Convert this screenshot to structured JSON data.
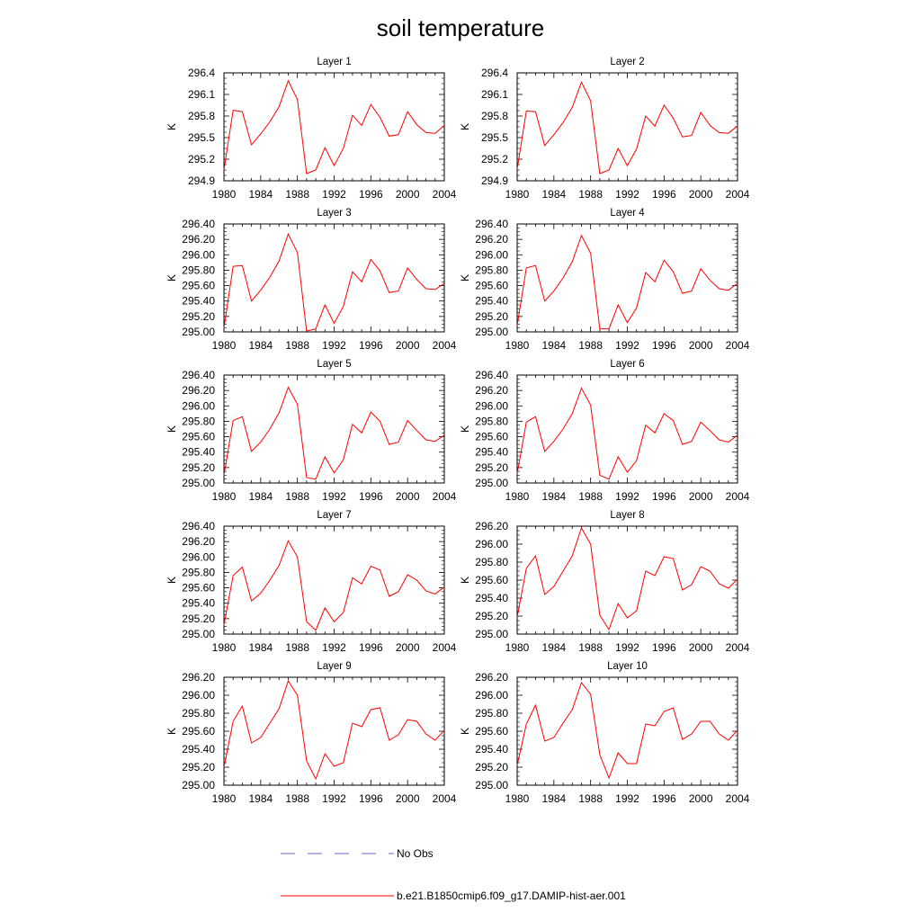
{
  "figure": {
    "title": "soil temperature",
    "legend": [
      {
        "label": "No Obs",
        "color": "#6666cc",
        "style": "dashed"
      },
      {
        "label": "b.e21.B1850cmip6.f09_g17.DAMIP-hist-aer.001",
        "color": "#ff0000",
        "style": "solid"
      }
    ]
  },
  "chart_data": [
    {
      "type": "line",
      "title": "Layer 1",
      "ylabel": "K",
      "xlim": [
        1980,
        2004
      ],
      "ylim": [
        294.9,
        296.4
      ],
      "xticks": [
        "1980",
        "1984",
        "1988",
        "1992",
        "1996",
        "2000",
        "2004"
      ],
      "yticks": [
        "294.9",
        "295.2",
        "295.5",
        "295.8",
        "296.1",
        "296.4"
      ],
      "x": [
        1980,
        1981,
        1982,
        1983,
        1984,
        1985,
        1986,
        1987,
        1988,
        1989,
        1990,
        1991,
        1992,
        1993,
        1994,
        1995,
        1996,
        1997,
        1998,
        1999,
        2000,
        2001,
        2002,
        2003,
        2004
      ],
      "series": [
        {
          "color": "#ff0000",
          "values": [
            295.05,
            295.88,
            295.86,
            295.4,
            295.55,
            295.72,
            295.93,
            296.29,
            296.03,
            295.0,
            295.05,
            295.36,
            295.11,
            295.35,
            295.81,
            295.67,
            295.96,
            295.78,
            295.52,
            295.54,
            295.86,
            295.68,
            295.57,
            295.56,
            295.67
          ]
        }
      ]
    },
    {
      "type": "line",
      "title": "Layer 2",
      "ylabel": "K",
      "xlim": [
        1980,
        2004
      ],
      "ylim": [
        294.9,
        296.4
      ],
      "xticks": [
        "1980",
        "1984",
        "1988",
        "1992",
        "1996",
        "2000",
        "2004"
      ],
      "yticks": [
        "294.9",
        "295.2",
        "295.5",
        "295.8",
        "296.1",
        "296.4"
      ],
      "x": [
        1980,
        1981,
        1982,
        1983,
        1984,
        1985,
        1986,
        1987,
        1988,
        1989,
        1990,
        1991,
        1992,
        1993,
        1994,
        1995,
        1996,
        1997,
        1998,
        1999,
        2000,
        2001,
        2002,
        2003,
        2004
      ],
      "series": [
        {
          "color": "#ff0000",
          "values": [
            295.06,
            295.87,
            295.86,
            295.39,
            295.54,
            295.71,
            295.92,
            296.27,
            296.01,
            295.0,
            295.05,
            295.35,
            295.11,
            295.34,
            295.8,
            295.66,
            295.95,
            295.77,
            295.51,
            295.53,
            295.85,
            295.67,
            295.57,
            295.56,
            295.66
          ]
        }
      ]
    },
    {
      "type": "line",
      "title": "Layer 3",
      "ylabel": "K",
      "xlim": [
        1980,
        2004
      ],
      "ylim": [
        295.0,
        296.4
      ],
      "xticks": [
        "1980",
        "1984",
        "1988",
        "1992",
        "1996",
        "2000",
        "2004"
      ],
      "yticks": [
        "295.00",
        "295.20",
        "295.40",
        "295.60",
        "295.80",
        "296.00",
        "296.20",
        "296.40"
      ],
      "x": [
        1980,
        1981,
        1982,
        1983,
        1984,
        1985,
        1986,
        1987,
        1988,
        1989,
        1990,
        1991,
        1992,
        1993,
        1994,
        1995,
        1996,
        1997,
        1998,
        1999,
        2000,
        2001,
        2002,
        2003,
        2004
      ],
      "series": [
        {
          "color": "#ff0000",
          "values": [
            295.05,
            295.85,
            295.86,
            295.4,
            295.54,
            295.71,
            295.92,
            296.27,
            296.03,
            295.01,
            295.04,
            295.35,
            295.11,
            295.33,
            295.78,
            295.65,
            295.94,
            295.79,
            295.51,
            295.53,
            295.83,
            295.68,
            295.56,
            295.55,
            295.63
          ]
        }
      ]
    },
    {
      "type": "line",
      "title": "Layer 4",
      "ylabel": "K",
      "xlim": [
        1980,
        2004
      ],
      "ylim": [
        295.0,
        296.4
      ],
      "xticks": [
        "1980",
        "1984",
        "1988",
        "1992",
        "1996",
        "2000",
        "2004"
      ],
      "yticks": [
        "295.00",
        "295.20",
        "295.40",
        "295.60",
        "295.80",
        "296.00",
        "296.20",
        "296.40"
      ],
      "x": [
        1980,
        1981,
        1982,
        1983,
        1984,
        1985,
        1986,
        1987,
        1988,
        1989,
        1990,
        1991,
        1992,
        1993,
        1994,
        1995,
        1996,
        1997,
        1998,
        1999,
        2000,
        2001,
        2002,
        2003,
        2004
      ],
      "series": [
        {
          "color": "#ff0000",
          "values": [
            295.08,
            295.83,
            295.86,
            295.4,
            295.53,
            295.7,
            295.91,
            296.25,
            296.02,
            295.04,
            295.04,
            295.35,
            295.12,
            295.31,
            295.77,
            295.65,
            295.93,
            295.78,
            295.5,
            295.53,
            295.82,
            295.67,
            295.56,
            295.54,
            295.63
          ]
        }
      ]
    },
    {
      "type": "line",
      "title": "Layer 5",
      "ylabel": "K",
      "xlim": [
        1980,
        2004
      ],
      "ylim": [
        295.0,
        296.4
      ],
      "xticks": [
        "1980",
        "1984",
        "1988",
        "1992",
        "1996",
        "2000",
        "2004"
      ],
      "yticks": [
        "295.00",
        "295.20",
        "295.40",
        "295.60",
        "295.80",
        "296.00",
        "296.20",
        "296.40"
      ],
      "x": [
        1980,
        1981,
        1982,
        1983,
        1984,
        1985,
        1986,
        1987,
        1988,
        1989,
        1990,
        1991,
        1992,
        1993,
        1994,
        1995,
        1996,
        1997,
        1998,
        1999,
        2000,
        2001,
        2002,
        2003,
        2004
      ],
      "series": [
        {
          "color": "#ff0000",
          "values": [
            295.1,
            295.81,
            295.86,
            295.41,
            295.53,
            295.7,
            295.91,
            296.24,
            296.02,
            295.07,
            295.05,
            295.34,
            295.13,
            295.3,
            295.76,
            295.65,
            295.92,
            295.8,
            295.5,
            295.53,
            295.81,
            295.68,
            295.56,
            295.54,
            295.62
          ]
        }
      ]
    },
    {
      "type": "line",
      "title": "Layer 6",
      "ylabel": "K",
      "xlim": [
        1980,
        2004
      ],
      "ylim": [
        295.0,
        296.4
      ],
      "xticks": [
        "1980",
        "1984",
        "1988",
        "1992",
        "1996",
        "2000",
        "2004"
      ],
      "yticks": [
        "295.00",
        "295.20",
        "295.40",
        "295.60",
        "295.80",
        "296.00",
        "296.20",
        "296.40"
      ],
      "x": [
        1980,
        1981,
        1982,
        1983,
        1984,
        1985,
        1986,
        1987,
        1988,
        1989,
        1990,
        1991,
        1992,
        1993,
        1994,
        1995,
        1996,
        1997,
        1998,
        1999,
        2000,
        2001,
        2002,
        2003,
        2004
      ],
      "series": [
        {
          "color": "#ff0000",
          "values": [
            295.12,
            295.79,
            295.86,
            295.41,
            295.54,
            295.7,
            295.9,
            296.23,
            296.01,
            295.1,
            295.05,
            295.34,
            295.14,
            295.29,
            295.75,
            295.65,
            295.9,
            295.81,
            295.5,
            295.54,
            295.79,
            295.68,
            295.56,
            295.53,
            295.62
          ]
        }
      ]
    },
    {
      "type": "line",
      "title": "Layer 7",
      "ylabel": "K",
      "xlim": [
        1980,
        2004
      ],
      "ylim": [
        295.0,
        296.4
      ],
      "xticks": [
        "1980",
        "1984",
        "1988",
        "1992",
        "1996",
        "2000",
        "2004"
      ],
      "yticks": [
        "295.00",
        "295.20",
        "295.40",
        "295.60",
        "295.80",
        "296.00",
        "296.20",
        "296.40"
      ],
      "x": [
        1980,
        1981,
        1982,
        1983,
        1984,
        1985,
        1986,
        1987,
        1988,
        1989,
        1990,
        1991,
        1992,
        1993,
        1994,
        1995,
        1996,
        1997,
        1998,
        1999,
        2000,
        2001,
        2002,
        2003,
        2004
      ],
      "series": [
        {
          "color": "#ff0000",
          "values": [
            295.12,
            295.76,
            295.87,
            295.43,
            295.53,
            295.7,
            295.89,
            296.21,
            296.0,
            295.16,
            295.05,
            295.34,
            295.16,
            295.28,
            295.73,
            295.65,
            295.88,
            295.83,
            295.49,
            295.55,
            295.77,
            295.7,
            295.56,
            295.52,
            295.61
          ]
        }
      ]
    },
    {
      "type": "line",
      "title": "Layer 8",
      "ylabel": "K",
      "xlim": [
        1980,
        2004
      ],
      "ylim": [
        295.0,
        296.2
      ],
      "xticks": [
        "1980",
        "1984",
        "1988",
        "1992",
        "1996",
        "2000",
        "2004"
      ],
      "yticks": [
        "295.00",
        "295.20",
        "295.40",
        "295.60",
        "295.80",
        "296.00",
        "296.20"
      ],
      "x": [
        1980,
        1981,
        1982,
        1983,
        1984,
        1985,
        1986,
        1987,
        1988,
        1989,
        1990,
        1991,
        1992,
        1993,
        1994,
        1995,
        1996,
        1997,
        1998,
        1999,
        2000,
        2001,
        2002,
        2003,
        2004
      ],
      "series": [
        {
          "color": "#ff0000",
          "values": [
            295.19,
            295.73,
            295.87,
            295.44,
            295.53,
            295.7,
            295.87,
            296.18,
            296.0,
            295.21,
            295.05,
            295.34,
            295.18,
            295.26,
            295.7,
            295.65,
            295.86,
            295.84,
            295.49,
            295.55,
            295.75,
            295.7,
            295.56,
            295.51,
            295.61
          ]
        }
      ]
    },
    {
      "type": "line",
      "title": "Layer 9",
      "ylabel": "K",
      "xlim": [
        1980,
        2004
      ],
      "ylim": [
        295.0,
        296.2
      ],
      "xticks": [
        "1980",
        "1984",
        "1988",
        "1992",
        "1996",
        "2000",
        "2004"
      ],
      "yticks": [
        "295.00",
        "295.20",
        "295.40",
        "295.60",
        "295.80",
        "296.00",
        "296.20"
      ],
      "x": [
        1980,
        1981,
        1982,
        1983,
        1984,
        1985,
        1986,
        1987,
        1988,
        1989,
        1990,
        1991,
        1992,
        1993,
        1994,
        1995,
        1996,
        1997,
        1998,
        1999,
        2000,
        2001,
        2002,
        2003,
        2004
      ],
      "series": [
        {
          "color": "#ff0000",
          "values": [
            295.2,
            295.71,
            295.88,
            295.47,
            295.53,
            295.69,
            295.85,
            296.16,
            296.0,
            295.27,
            295.07,
            295.35,
            295.21,
            295.25,
            295.69,
            295.65,
            295.84,
            295.86,
            295.5,
            295.56,
            295.73,
            295.71,
            295.57,
            295.5,
            295.61
          ]
        }
      ]
    },
    {
      "type": "line",
      "title": "Layer 10",
      "ylabel": "K",
      "xlim": [
        1980,
        2004
      ],
      "ylim": [
        295.0,
        296.2
      ],
      "xticks": [
        "1980",
        "1984",
        "1988",
        "1992",
        "1996",
        "2000",
        "2004"
      ],
      "yticks": [
        "295.00",
        "295.20",
        "295.40",
        "295.60",
        "295.80",
        "296.00",
        "296.20"
      ],
      "x": [
        1980,
        1981,
        1982,
        1983,
        1984,
        1985,
        1986,
        1987,
        1988,
        1989,
        1990,
        1991,
        1992,
        1993,
        1994,
        1995,
        1996,
        1997,
        1998,
        1999,
        2000,
        2001,
        2002,
        2003,
        2004
      ],
      "series": [
        {
          "color": "#ff0000",
          "values": [
            295.22,
            295.68,
            295.89,
            295.49,
            295.53,
            295.69,
            295.84,
            296.14,
            296.01,
            295.34,
            295.08,
            295.36,
            295.24,
            295.24,
            295.68,
            295.66,
            295.82,
            295.86,
            295.51,
            295.57,
            295.71,
            295.71,
            295.57,
            295.5,
            295.61
          ]
        }
      ]
    }
  ]
}
